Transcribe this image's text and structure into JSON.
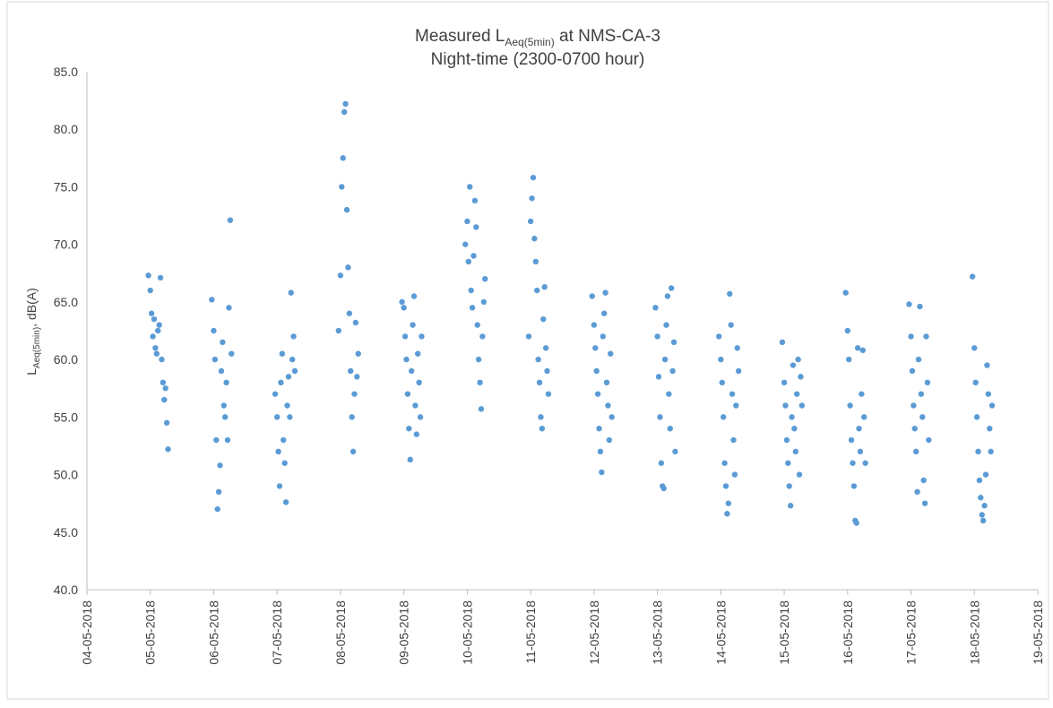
{
  "chart_data": {
    "type": "scatter",
    "title": {
      "line1_pre": "Measured L",
      "line1_sub": "Aeq(5min)",
      "line1_post": " at NMS-CA-3",
      "line2": "Night-time (2300-0700 hour)"
    },
    "ylabel": {
      "pre": "L",
      "sub": "Aeq(5min)",
      "post": ", dB(A)"
    },
    "xlim": [
      0,
      15
    ],
    "xticks": [
      {
        "value": 0,
        "label": "04-05-2018"
      },
      {
        "value": 1,
        "label": "05-05-2018"
      },
      {
        "value": 2,
        "label": "06-05-2018"
      },
      {
        "value": 3,
        "label": "07-05-2018"
      },
      {
        "value": 4,
        "label": "08-05-2018"
      },
      {
        "value": 5,
        "label": "09-05-2018"
      },
      {
        "value": 6,
        "label": "10-05-2018"
      },
      {
        "value": 7,
        "label": "11-05-2018"
      },
      {
        "value": 8,
        "label": "12-05-2018"
      },
      {
        "value": 9,
        "label": "13-05-2018"
      },
      {
        "value": 10,
        "label": "14-05-2018"
      },
      {
        "value": 11,
        "label": "15-05-2018"
      },
      {
        "value": 12,
        "label": "16-05-2018"
      },
      {
        "value": 13,
        "label": "17-05-2018"
      },
      {
        "value": 14,
        "label": "18-05-2018"
      },
      {
        "value": 15,
        "label": "19-05-2018"
      }
    ],
    "ylim": [
      40,
      85
    ],
    "yticks": [
      {
        "value": 40,
        "label": "40.0"
      },
      {
        "value": 45,
        "label": "45.0"
      },
      {
        "value": 50,
        "label": "50.0"
      },
      {
        "value": 55,
        "label": "55.0"
      },
      {
        "value": 60,
        "label": "60.0"
      },
      {
        "value": 65,
        "label": "65.0"
      },
      {
        "value": 70,
        "label": "70.0"
      },
      {
        "value": 75,
        "label": "75.0"
      },
      {
        "value": 80,
        "label": "80.0"
      },
      {
        "value": 85,
        "label": "85.0"
      }
    ],
    "grid": false,
    "series": [
      {
        "color": "#5b9bd5",
        "x": [
          0.97,
          1.0,
          1.02,
          1.04,
          1.06,
          1.08,
          1.1,
          1.12,
          1.14,
          1.16,
          1.18,
          1.2,
          1.22,
          1.24,
          1.26,
          1.28,
          1.97,
          2.0,
          2.02,
          2.04,
          2.06,
          2.08,
          2.1,
          2.12,
          2.14,
          2.16,
          2.18,
          2.2,
          2.22,
          2.24,
          2.26,
          2.28,
          2.97,
          3.0,
          3.02,
          3.04,
          3.06,
          3.08,
          3.1,
          3.12,
          3.14,
          3.16,
          3.18,
          3.2,
          3.22,
          3.24,
          3.26,
          3.28,
          3.97,
          4.0,
          4.02,
          4.04,
          4.06,
          4.08,
          4.1,
          4.12,
          4.14,
          4.16,
          4.18,
          4.2,
          4.22,
          4.24,
          4.26,
          4.28,
          4.97,
          5.0,
          5.02,
          5.04,
          5.06,
          5.08,
          5.1,
          5.12,
          5.14,
          5.16,
          5.18,
          5.2,
          5.22,
          5.24,
          5.26,
          5.28,
          5.97,
          6.0,
          6.02,
          6.04,
          6.06,
          6.08,
          6.1,
          6.12,
          6.14,
          6.16,
          6.18,
          6.2,
          6.22,
          6.24,
          6.26,
          6.28,
          6.97,
          7.0,
          7.02,
          7.04,
          7.06,
          7.08,
          7.1,
          7.12,
          7.14,
          7.16,
          7.18,
          7.2,
          7.22,
          7.24,
          7.26,
          7.28,
          7.97,
          8.0,
          8.02,
          8.04,
          8.06,
          8.08,
          8.1,
          8.12,
          8.14,
          8.16,
          8.18,
          8.2,
          8.22,
          8.24,
          8.26,
          8.28,
          8.97,
          9.0,
          9.02,
          9.04,
          9.06,
          9.08,
          9.1,
          9.12,
          9.14,
          9.16,
          9.18,
          9.2,
          9.22,
          9.24,
          9.26,
          9.28,
          9.97,
          10.0,
          10.02,
          10.04,
          10.06,
          10.08,
          10.1,
          10.12,
          10.14,
          10.16,
          10.18,
          10.2,
          10.22,
          10.24,
          10.26,
          10.28,
          10.97,
          11.0,
          11.02,
          11.04,
          11.06,
          11.08,
          11.1,
          11.12,
          11.14,
          11.16,
          11.18,
          11.2,
          11.22,
          11.24,
          11.26,
          11.28,
          11.97,
          12.0,
          12.02,
          12.04,
          12.06,
          12.08,
          12.1,
          12.12,
          12.14,
          12.16,
          12.18,
          12.2,
          12.22,
          12.24,
          12.26,
          12.28,
          12.97,
          13.0,
          13.02,
          13.04,
          13.06,
          13.08,
          13.1,
          13.12,
          13.14,
          13.16,
          13.18,
          13.2,
          13.22,
          13.24,
          13.26,
          13.28,
          13.97,
          14.0,
          14.02,
          14.04,
          14.06,
          14.08,
          14.1,
          14.12,
          14.14,
          14.16,
          14.18,
          14.2,
          14.22,
          14.24,
          14.26,
          14.28
        ],
        "values": [
          67.3,
          66,
          64,
          62,
          63.5,
          61,
          60.5,
          62.5,
          63,
          67.1,
          60,
          58,
          56.5,
          57.5,
          54.5,
          52.2,
          65.2,
          62.5,
          60,
          53,
          47,
          48.5,
          50.8,
          59,
          61.5,
          56,
          55,
          58,
          53,
          64.5,
          72.1,
          60.5,
          57,
          55,
          52,
          49,
          58,
          60.5,
          53,
          51,
          47.6,
          56,
          58.5,
          55,
          65.8,
          60,
          62,
          59,
          62.5,
          67.3,
          75,
          77.5,
          81.5,
          82.2,
          73,
          68,
          64,
          59,
          55,
          52,
          57,
          63.2,
          58.5,
          60.5,
          65,
          64.5,
          62,
          60,
          57,
          54,
          51.3,
          59,
          63,
          65.5,
          56,
          53.5,
          60.5,
          58,
          55,
          62,
          70,
          72,
          68.5,
          75,
          66,
          64.5,
          69,
          73.8,
          71.5,
          63,
          60,
          58,
          55.7,
          62,
          65,
          67,
          62,
          72,
          74,
          75.8,
          70.5,
          68.5,
          66,
          60,
          58,
          55,
          54,
          63.5,
          66.3,
          61,
          59,
          57,
          65.5,
          63,
          61,
          59,
          57,
          54,
          52,
          50.2,
          62,
          64,
          65.8,
          58,
          56,
          53,
          60.5,
          55,
          64.5,
          62,
          58.5,
          55,
          51,
          49,
          48.8,
          60,
          63,
          65.5,
          57,
          54,
          66.2,
          59,
          61.5,
          52,
          62,
          60,
          58,
          55,
          51,
          49,
          46.6,
          47.5,
          65.7,
          63,
          57,
          53,
          50,
          56,
          61,
          59,
          61.5,
          58,
          56,
          53,
          51,
          49,
          47.3,
          55,
          59.5,
          54,
          52,
          57,
          60,
          50,
          58.5,
          56,
          65.8,
          62.5,
          60,
          56,
          53,
          51,
          49,
          46,
          45.8,
          61,
          54,
          52,
          57,
          60.8,
          55,
          51,
          64.8,
          62,
          59,
          56,
          54,
          52,
          48.5,
          60,
          64.6,
          57,
          55,
          49.5,
          47.5,
          62,
          58,
          53,
          67.2,
          61,
          58,
          55,
          52,
          49.5,
          48,
          46.5,
          46,
          47.3,
          50,
          59.5,
          57,
          54,
          52,
          56
        ]
      }
    ]
  }
}
